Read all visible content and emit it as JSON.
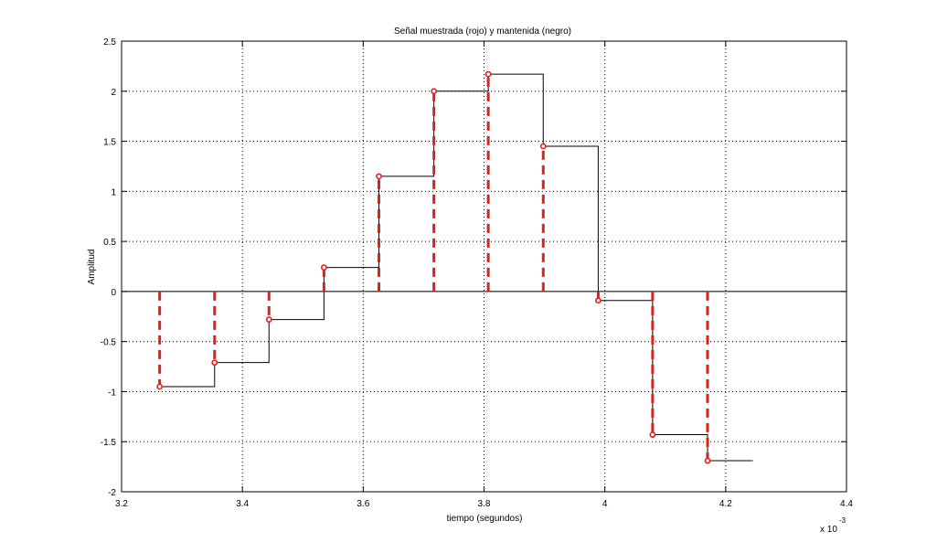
{
  "chart_data": {
    "type": "line",
    "title": "Señal muestrada (rojo) y mantenida (negro)",
    "xlabel": "tiempo (segundos)",
    "ylabel": "Amplitud",
    "x_multiplier_label": "x 10",
    "x_multiplier_exponent": "-3",
    "xlim": [
      3.2,
      4.4
    ],
    "ylim": [
      -2,
      2.5
    ],
    "x_ticks": [
      3.2,
      3.4,
      3.6,
      3.8,
      4.0,
      4.2,
      4.4
    ],
    "x_tick_labels": [
      "3.2",
      "3.4",
      "3.6",
      "3.8",
      "4",
      "4.2",
      "4.4"
    ],
    "y_ticks": [
      -2,
      -1.5,
      -1,
      -0.5,
      0,
      0.5,
      1,
      1.5,
      2,
      2.5
    ],
    "y_tick_labels": [
      "-2",
      "-1.5",
      "-1",
      "-0.5",
      "0",
      "0.5",
      "1",
      "1.5",
      "2",
      "2.5"
    ],
    "grid": true,
    "zero_line": true,
    "colors": {
      "sampled": "#e0201c",
      "held": "#000000"
    },
    "series": [
      {
        "style": "stem-dashed-circle-markers",
        "color": "#e0201c",
        "x": [
          3.263,
          3.354,
          3.444,
          3.535,
          3.626,
          3.717,
          3.807,
          3.898,
          3.989,
          4.079,
          4.17
        ],
        "y": [
          -0.95,
          -0.71,
          -0.28,
          0.24,
          1.15,
          2.0,
          2.17,
          1.45,
          -0.09,
          -1.43,
          -1.69
        ]
      },
      {
        "style": "zero-order-hold-step",
        "color": "#000000",
        "x": [
          3.263,
          3.354,
          3.444,
          3.535,
          3.626,
          3.717,
          3.807,
          3.898,
          3.989,
          4.079,
          4.17
        ],
        "y": [
          -0.95,
          -0.71,
          -0.28,
          0.24,
          1.15,
          2.0,
          2.17,
          1.45,
          -0.09,
          -1.43,
          -1.69
        ],
        "x_end": 4.245
      }
    ]
  }
}
